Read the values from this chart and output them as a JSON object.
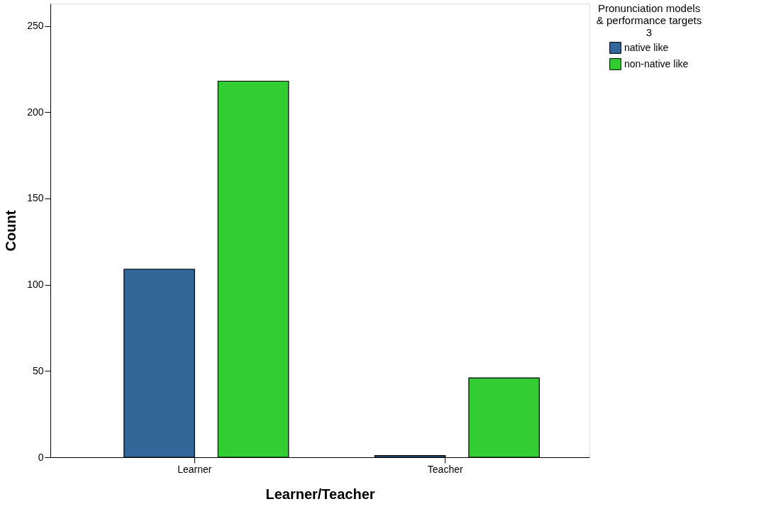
{
  "chart_data": {
    "type": "bar",
    "xlabel": "Learner/Teacher",
    "ylabel": "Count",
    "legend_title": "Pronunciation models\n& performance targets\n3",
    "categories": [
      "Learner",
      "Teacher"
    ],
    "series": [
      {
        "name": "native like",
        "color": "#336699",
        "values": [
          109,
          1
        ]
      },
      {
        "name": "non-native like",
        "color": "#33cc33",
        "values": [
          218,
          46
        ]
      }
    ],
    "ylim": [
      0,
      263
    ],
    "yticks": [
      0,
      50,
      100,
      150,
      200,
      250
    ],
    "grid": false,
    "legend": "top right"
  }
}
